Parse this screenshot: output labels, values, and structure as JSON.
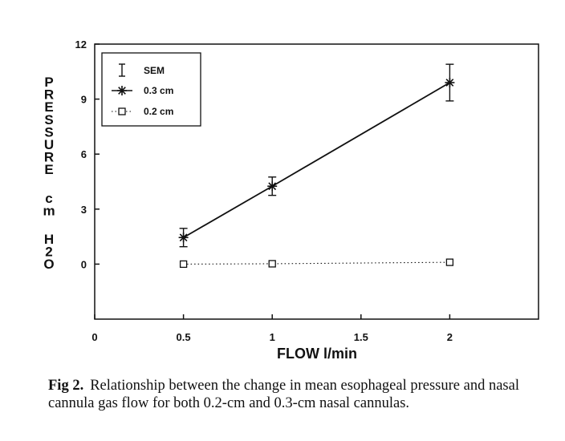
{
  "chart_data": {
    "type": "line",
    "xlabel": "FLOW l/min",
    "ylabel_lines": [
      "PRESSURE",
      "cm",
      "H2O"
    ],
    "xlim": [
      0,
      2.5
    ],
    "ylim": [
      -3,
      12
    ],
    "xticks": [
      0,
      0.5,
      1,
      1.5,
      2
    ],
    "xtick_labels": [
      "0",
      "0.5",
      "1",
      "1.5",
      "2"
    ],
    "yticks": [
      0,
      3,
      6,
      9,
      12
    ],
    "ytick_labels": [
      "0",
      "3",
      "6",
      "9",
      "12"
    ],
    "legend": {
      "placement": "top-left",
      "entries": [
        "SEM",
        "0.3 cm",
        "0.2 cm"
      ]
    },
    "series": [
      {
        "name": "0.3 cm",
        "marker": "asterisk",
        "line": "solid",
        "x": [
          0.5,
          1,
          2
        ],
        "y": [
          1.45,
          4.25,
          9.9
        ],
        "sem": [
          0.5,
          0.5,
          1.0
        ]
      },
      {
        "name": "0.2 cm",
        "marker": "square",
        "line": "dotted",
        "x": [
          0.5,
          1,
          2
        ],
        "y": [
          0.0,
          0.02,
          0.1
        ]
      }
    ]
  },
  "caption": {
    "label": "Fig 2.",
    "text": "Relationship between the change in mean esophageal pressure and nasal cannula gas flow for both 0.2-cm and 0.3-cm nasal cannulas."
  }
}
